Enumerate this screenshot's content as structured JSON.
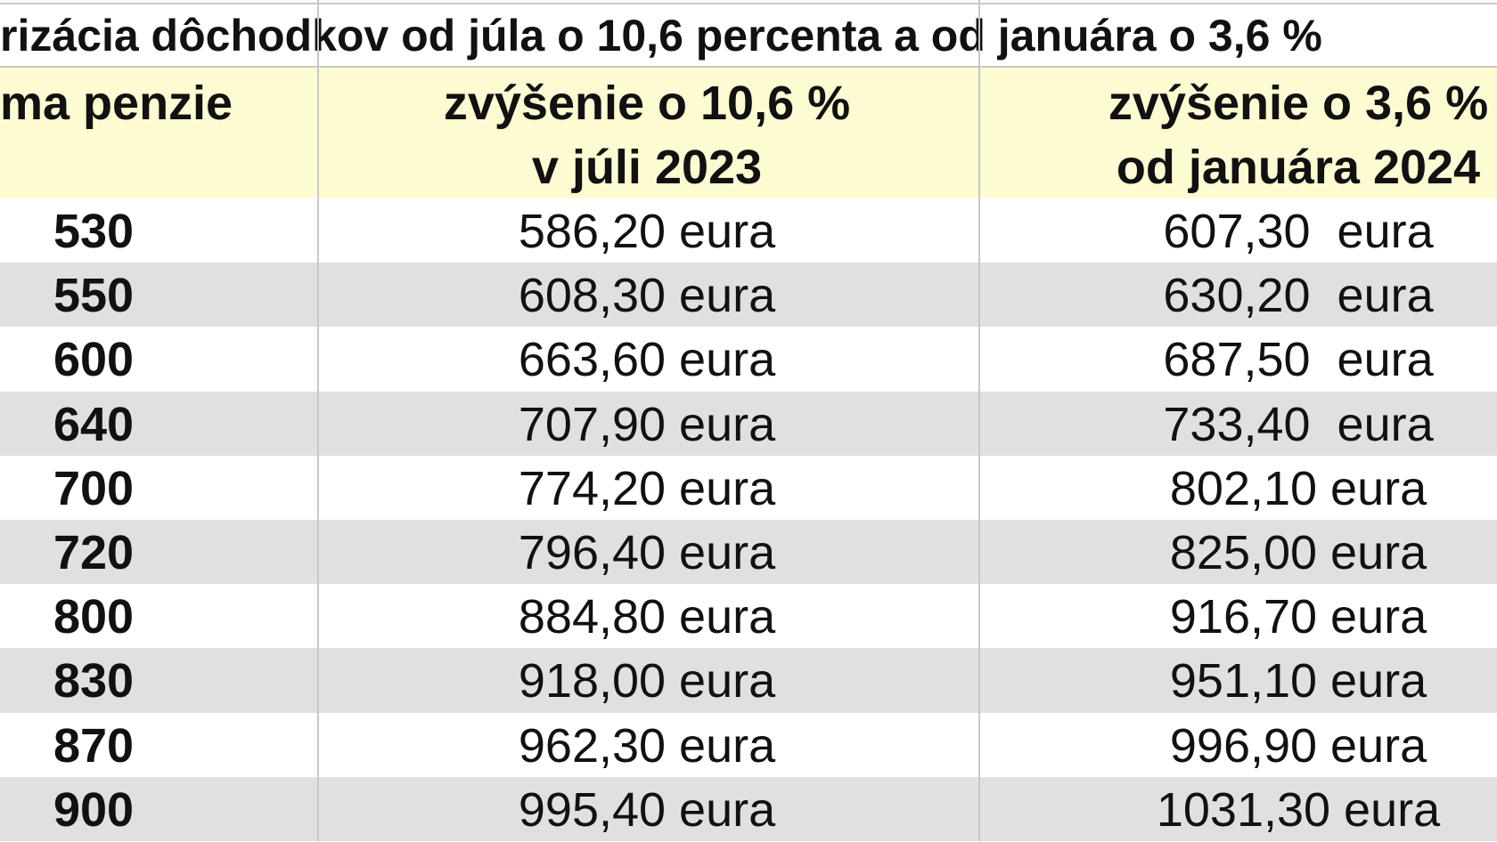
{
  "title": "rizácia dôchodkov od júla o 10,6 percenta a od januára o 3,6 %",
  "header": [
    [
      "ma penzie"
    ],
    [
      "zvýšenie o 10,6 %",
      "v júli 2023"
    ],
    [
      "zvýšenie o 3,6 %",
      "od januára 2024"
    ]
  ],
  "rows": [
    [
      "530",
      "586,20 eura",
      "607,30  eura"
    ],
    [
      "550",
      "608,30 eura",
      "630,20  eura"
    ],
    [
      "600",
      "663,60 eura",
      "687,50  eura"
    ],
    [
      "640",
      "707,90 eura",
      "733,40  eura"
    ],
    [
      "700",
      "774,20 eura",
      "802,10 eura"
    ],
    [
      "720",
      "796,40 eura",
      "825,00 eura"
    ],
    [
      "800",
      "884,80 eura",
      "916,70 eura"
    ],
    [
      "830",
      "918,00 eura",
      "951,10 eura"
    ],
    [
      "870",
      "962,30 eura",
      "996,90 eura"
    ],
    [
      "900",
      "995,40 eura",
      "1031,30 eura"
    ]
  ]
}
